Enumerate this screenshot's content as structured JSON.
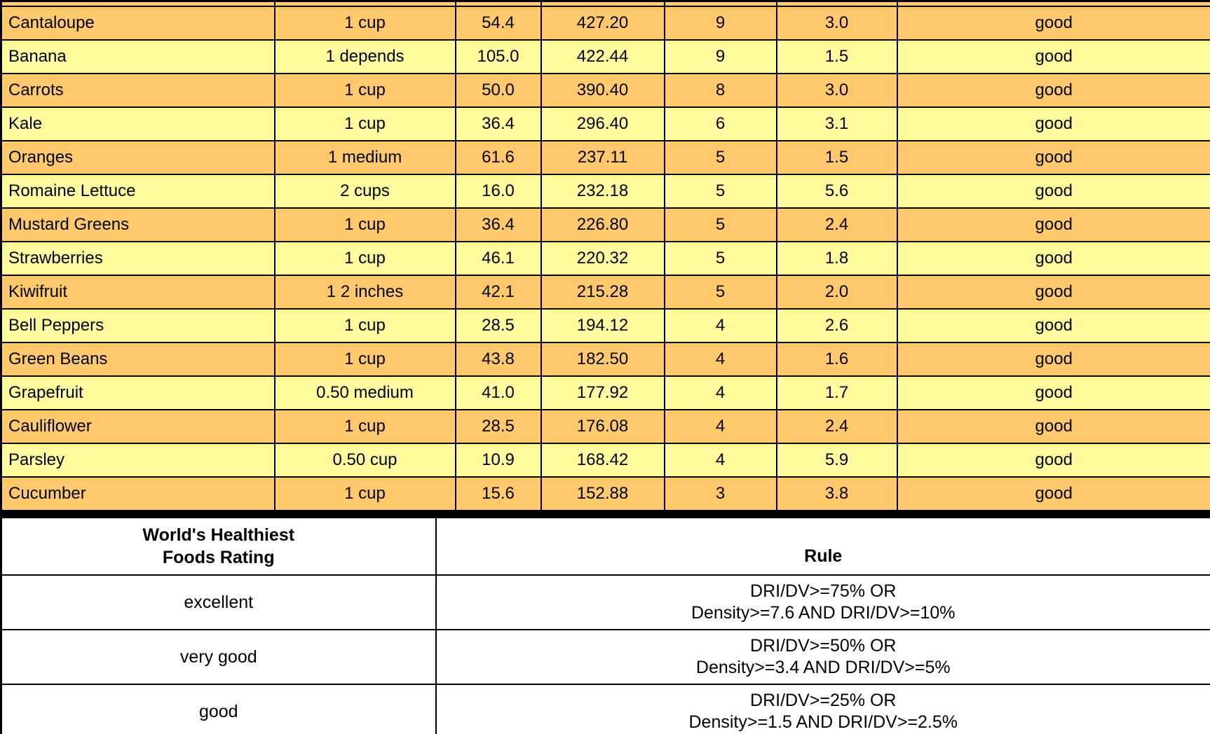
{
  "colors": {
    "row_orange": "#fdc96b",
    "row_yellow": "#fffb9d",
    "border": "#000000",
    "background": "#ffffff"
  },
  "main_table": {
    "column_semantics": [
      "food",
      "serving_size",
      "calories",
      "amount",
      "dri_dv_percent",
      "density",
      "rating"
    ],
    "rows": [
      [
        "Cantaloupe",
        "1 cup",
        "54.4",
        "427.20",
        "9",
        "3.0",
        "good"
      ],
      [
        "Banana",
        "1 depends",
        "105.0",
        "422.44",
        "9",
        "1.5",
        "good"
      ],
      [
        "Carrots",
        "1 cup",
        "50.0",
        "390.40",
        "8",
        "3.0",
        "good"
      ],
      [
        "Kale",
        "1 cup",
        "36.4",
        "296.40",
        "6",
        "3.1",
        "good"
      ],
      [
        "Oranges",
        "1 medium",
        "61.6",
        "237.11",
        "5",
        "1.5",
        "good"
      ],
      [
        "Romaine Lettuce",
        "2 cups",
        "16.0",
        "232.18",
        "5",
        "5.6",
        "good"
      ],
      [
        "Mustard Greens",
        "1 cup",
        "36.4",
        "226.80",
        "5",
        "2.4",
        "good"
      ],
      [
        "Strawberries",
        "1 cup",
        "46.1",
        "220.32",
        "5",
        "1.8",
        "good"
      ],
      [
        "Kiwifruit",
        "1 2 inches",
        "42.1",
        "215.28",
        "5",
        "2.0",
        "good"
      ],
      [
        "Bell Peppers",
        "1 cup",
        "28.5",
        "194.12",
        "4",
        "2.6",
        "good"
      ],
      [
        "Green Beans",
        "1 cup",
        "43.8",
        "182.50",
        "4",
        "1.6",
        "good"
      ],
      [
        "Grapefruit",
        "0.50 medium",
        "41.0",
        "177.92",
        "4",
        "1.7",
        "good"
      ],
      [
        "Cauliflower",
        "1 cup",
        "28.5",
        "176.08",
        "4",
        "2.4",
        "good"
      ],
      [
        "Parsley",
        "0.50 cup",
        "10.9",
        "168.42",
        "4",
        "5.9",
        "good"
      ],
      [
        "Cucumber",
        "1 cup",
        "15.6",
        "152.88",
        "3",
        "3.8",
        "good"
      ]
    ]
  },
  "rating_table": {
    "header": {
      "title_line1": "World's Healthiest",
      "title_line2": "Foods Rating",
      "rule_label": "Rule"
    },
    "rows": [
      {
        "rating": "excellent",
        "rule_line1": "DRI/DV>=75% OR",
        "rule_line2": "Density>=7.6 AND DRI/DV>=10%"
      },
      {
        "rating": "very good",
        "rule_line1": "DRI/DV>=50% OR",
        "rule_line2": "Density>=3.4 AND DRI/DV>=5%"
      },
      {
        "rating": "good",
        "rule_line1": "DRI/DV>=25% OR",
        "rule_line2": "Density>=1.5 AND DRI/DV>=2.5%"
      }
    ]
  }
}
